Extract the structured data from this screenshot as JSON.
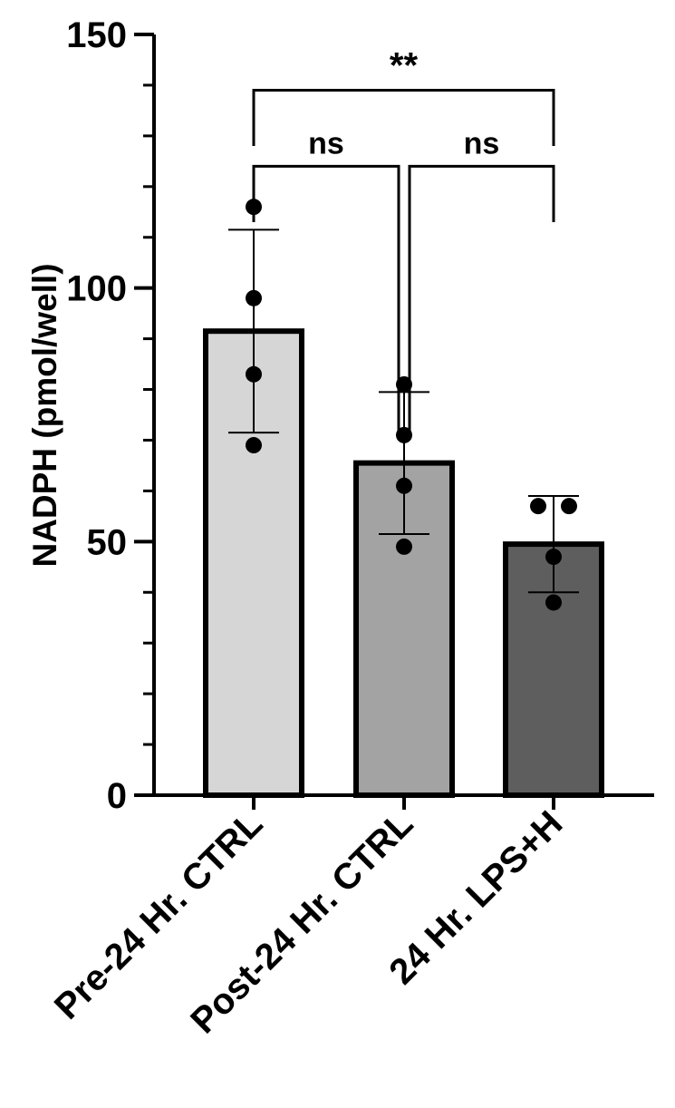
{
  "chart_data": {
    "type": "bar",
    "title": "",
    "xlabel": "",
    "ylabel": "NADPH (pmol/well)",
    "ylim": [
      0,
      150
    ],
    "y_ticks": [
      0,
      50,
      100,
      150
    ],
    "y_minor_step": 10,
    "grid": false,
    "categories": [
      "Pre-24 Hr. CTRL",
      "Post-24 Hr. CTRL",
      "24 Hr. LPS+H"
    ],
    "values": [
      91.5,
      65.5,
      49.5
    ],
    "sd": [
      20.0,
      14.0,
      9.5
    ],
    "points": [
      [
        116,
        98,
        83,
        69
      ],
      [
        81,
        71,
        61,
        49
      ],
      [
        57,
        57,
        47,
        38
      ]
    ],
    "colors": {
      "bars": [
        "#d6d6d6",
        "#a3a3a3",
        "#5e5e5e"
      ],
      "edge": "#000000"
    },
    "significance": [
      {
        "from": 0,
        "to": 2,
        "label": "**",
        "y": 139
      },
      {
        "from": 0,
        "to": 1,
        "label": "ns",
        "y": 124
      },
      {
        "from": 1,
        "to": 2,
        "label": "ns",
        "y": 124
      }
    ]
  }
}
